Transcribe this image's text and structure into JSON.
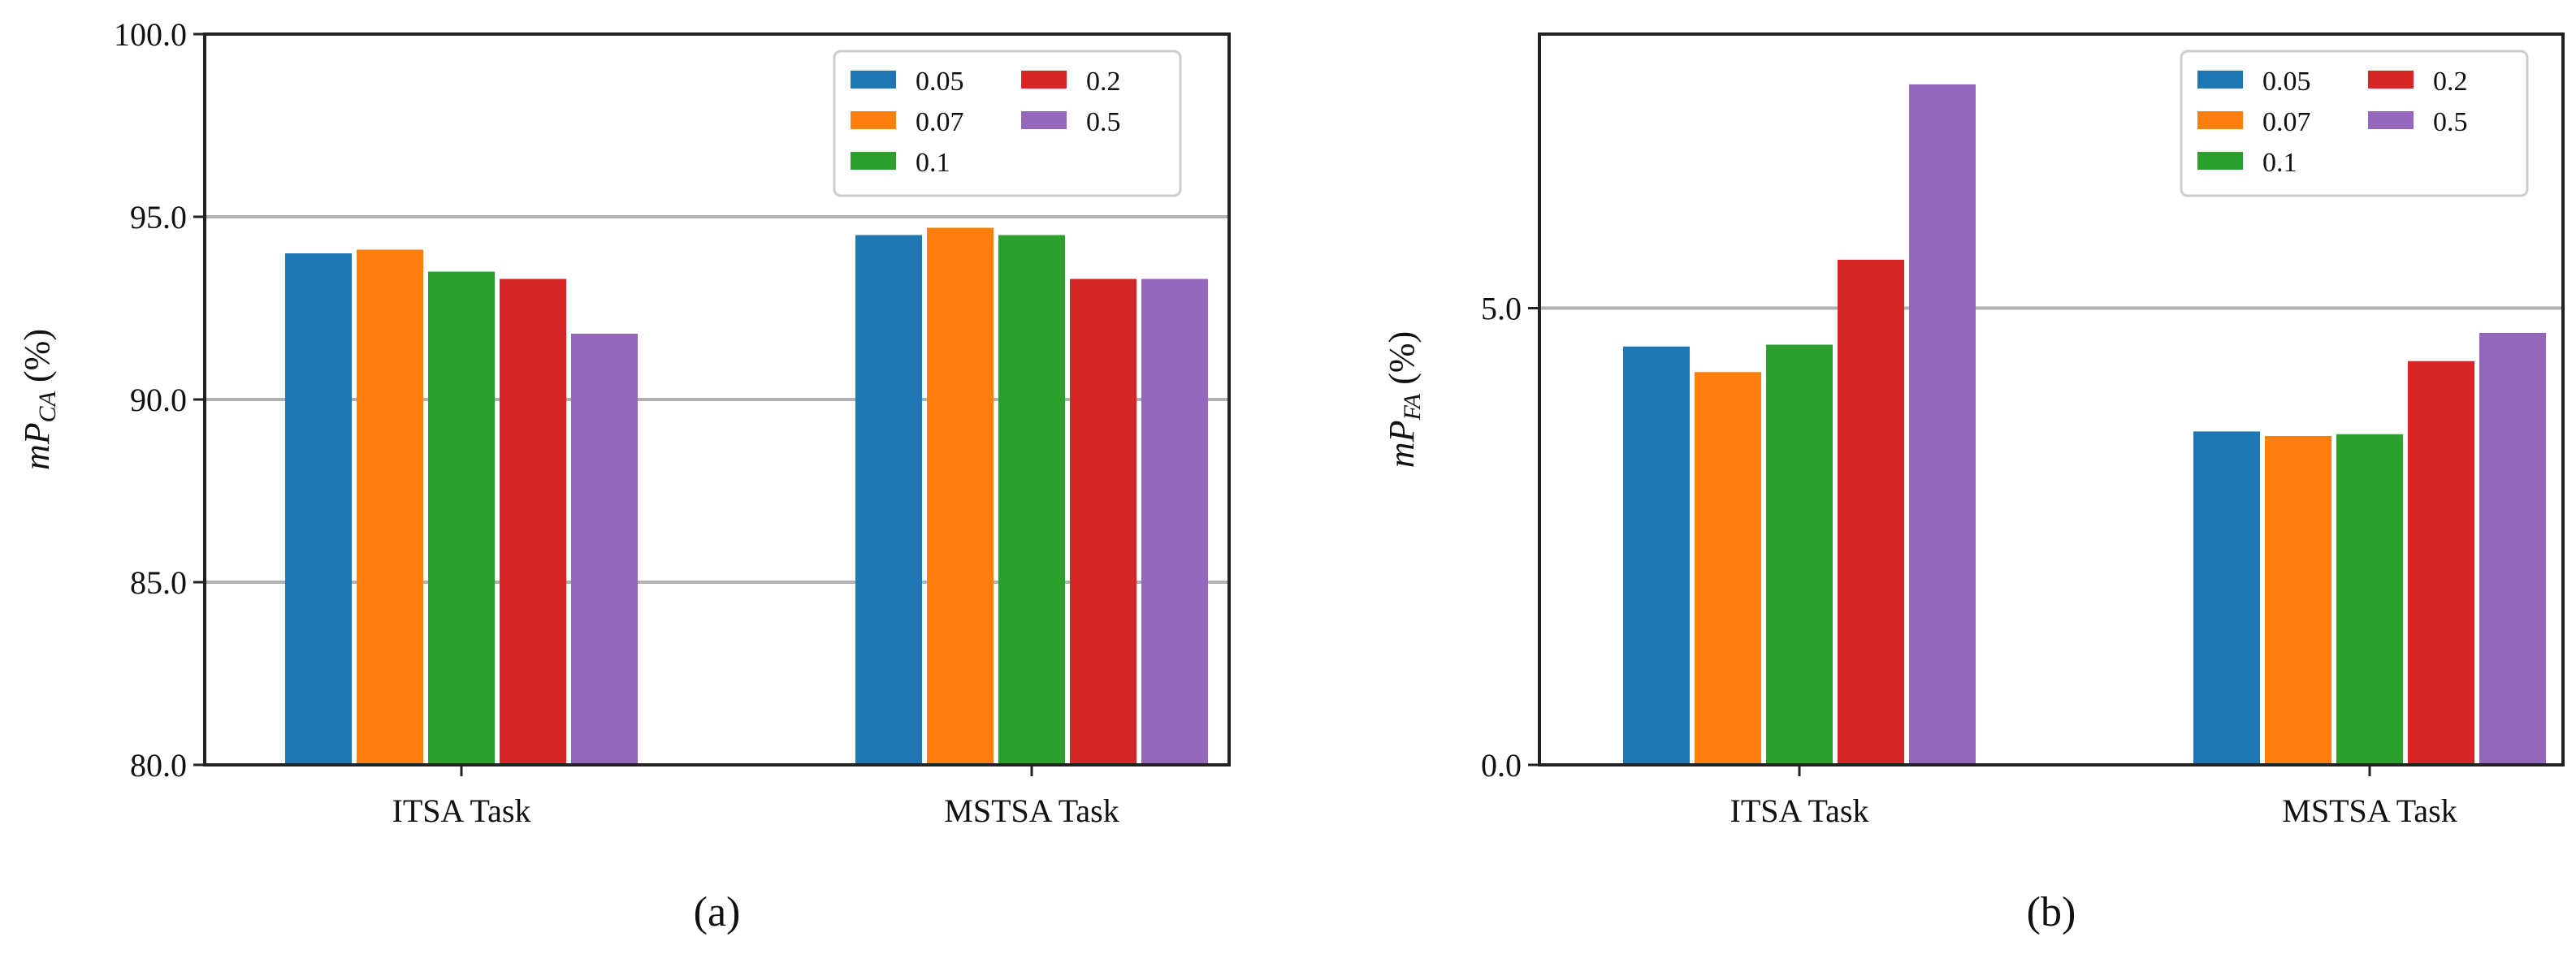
{
  "colors": {
    "0.05": "#1f77b4",
    "0.07": "#ff7f0e",
    "0.1": "#2ca02c",
    "0.2": "#d62728",
    "0.5": "#9467bd",
    "grid": "#b0b0b0",
    "axis": "#222222"
  },
  "chart_data": [
    {
      "type": "bar",
      "panel": "a",
      "caption": "(a)",
      "ylabel": {
        "main": "mP",
        "sub": "CA",
        "unit": "(%)"
      },
      "ylim": [
        80,
        100
      ],
      "yticks": [
        "80.0",
        "85.0",
        "90.0",
        "95.0",
        "100.0"
      ],
      "ytick_values": [
        80,
        85,
        90,
        95,
        100
      ],
      "grid": "y",
      "grid_values": [
        85,
        90,
        95
      ],
      "legend_position": "top-right",
      "categories": [
        "ITSA Task",
        "MSTSA Task"
      ],
      "series": [
        {
          "name": "0.05",
          "values": [
            94.0,
            94.5
          ]
        },
        {
          "name": "0.07",
          "values": [
            94.1,
            94.7
          ]
        },
        {
          "name": "0.1",
          "values": [
            93.5,
            94.5
          ]
        },
        {
          "name": "0.2",
          "values": [
            93.3,
            93.3
          ]
        },
        {
          "name": "0.5",
          "values": [
            91.8,
            93.3
          ]
        }
      ]
    },
    {
      "type": "bar",
      "panel": "b",
      "caption": "(b)",
      "ylabel": {
        "main": "mP",
        "sub": "FA",
        "unit": "(%)"
      },
      "ylim": [
        0,
        8
      ],
      "yticks": [
        "0.0",
        "5.0"
      ],
      "ytick_values": [
        0,
        5
      ],
      "grid": "y",
      "grid_values": [
        5
      ],
      "legend_position": "top-right",
      "categories": [
        "ITSA Task",
        "MSTSA Task"
      ],
      "series": [
        {
          "name": "0.05",
          "values": [
            4.58,
            3.65
          ]
        },
        {
          "name": "0.07",
          "values": [
            4.3,
            3.6
          ]
        },
        {
          "name": "0.1",
          "values": [
            4.6,
            3.62
          ]
        },
        {
          "name": "0.2",
          "values": [
            5.53,
            4.42
          ]
        },
        {
          "name": "0.5",
          "values": [
            7.45,
            4.73
          ]
        }
      ]
    }
  ]
}
